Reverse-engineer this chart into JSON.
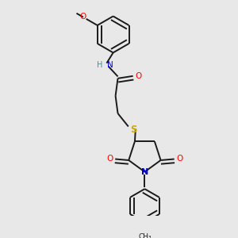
{
  "background_color": "#e8e8e8",
  "bond_color": "#1a1a1a",
  "atom_colors": {
    "O": "#ff0000",
    "N": "#0000cc",
    "S": "#ccaa00",
    "H": "#4a9090",
    "C": "#1a1a1a"
  },
  "figsize": [
    3.0,
    3.0
  ],
  "dpi": 100,
  "line_width": 1.4
}
